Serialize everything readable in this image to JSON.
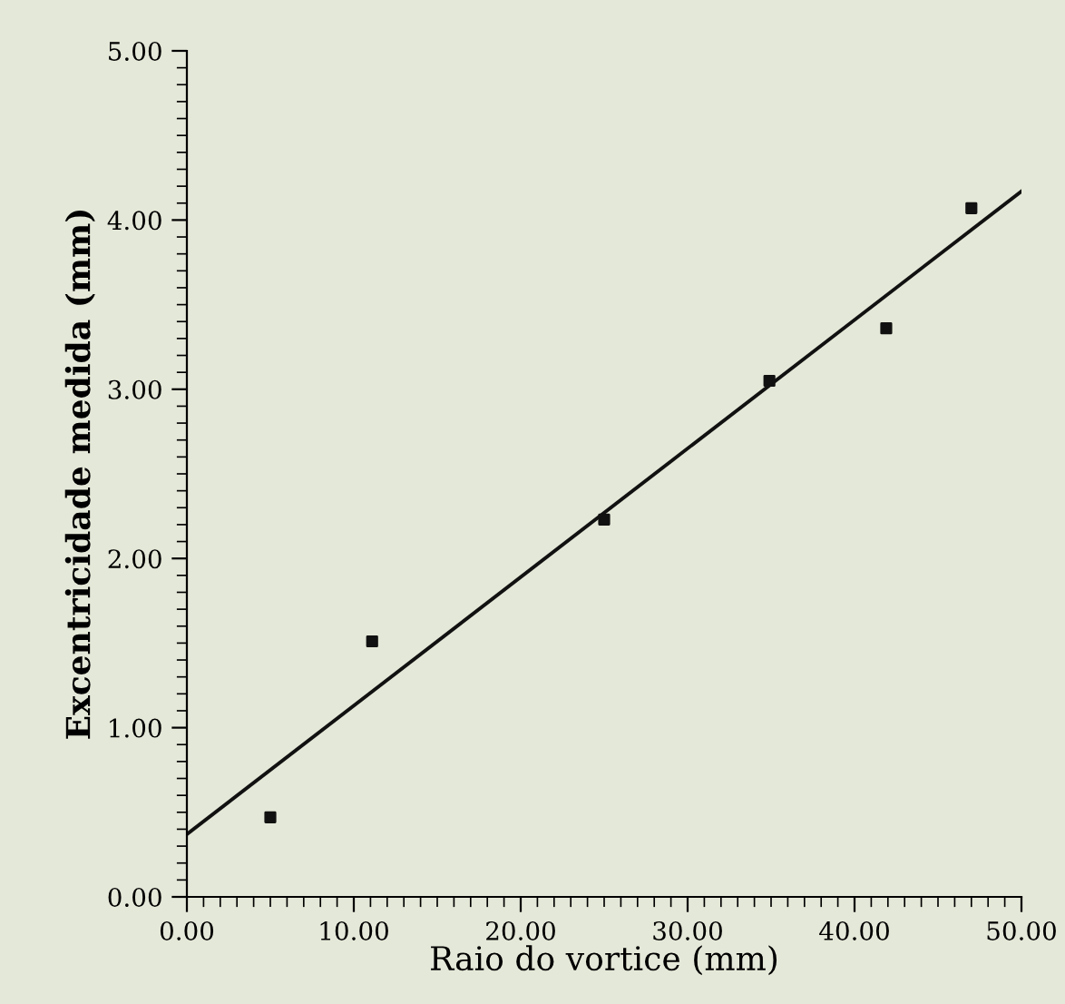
{
  "chart_data": {
    "type": "scatter",
    "xlabel": "Raio do vortice (mm)",
    "ylabel": "Excentricidade medida (mm)",
    "x": [
      5.0,
      11.1,
      25.0,
      34.9,
      41.9,
      47.0
    ],
    "series": [
      {
        "color": "#111111",
        "marker": "square",
        "values": [
          0.47,
          1.51,
          2.23,
          3.05,
          3.36,
          4.07
        ]
      },
      {
        "type": "line",
        "color": "#111111",
        "x": [
          0,
          50
        ],
        "values": [
          0.37,
          4.17
        ]
      }
    ],
    "xlim": [
      0,
      50
    ],
    "ylim": [
      0,
      5
    ],
    "xticks": [
      {
        "value": 0,
        "label": "0.00"
      },
      {
        "value": 10,
        "label": "10.00"
      },
      {
        "value": 20,
        "label": "20.00"
      },
      {
        "value": 30,
        "label": "30.00"
      },
      {
        "value": 40,
        "label": "40.00"
      },
      {
        "value": 50,
        "label": "50.00"
      }
    ],
    "yticks": [
      {
        "value": 0,
        "label": "0.00"
      },
      {
        "value": 1,
        "label": "1.00"
      },
      {
        "value": 2,
        "label": "2.00"
      },
      {
        "value": 3,
        "label": "3.00"
      },
      {
        "value": 4,
        "label": "4.00"
      },
      {
        "value": 5,
        "label": "5.00"
      }
    ],
    "grid": false
  }
}
